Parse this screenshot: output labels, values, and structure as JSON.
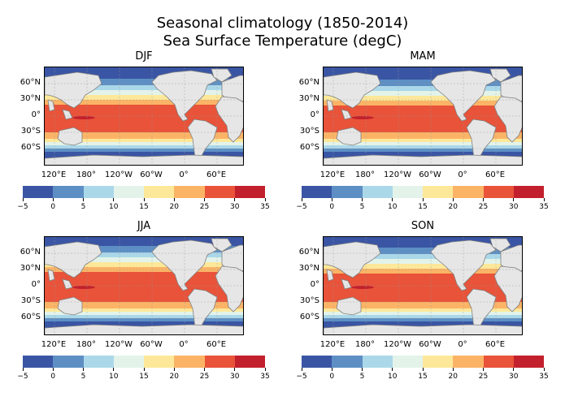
{
  "title_line1": "Seasonal climatology  (1850-2014)",
  "title_line2": "Sea Surface Temperature (degC)",
  "panels": [
    {
      "title": "DJF",
      "season": "DJF"
    },
    {
      "title": "MAM",
      "season": "MAM"
    },
    {
      "title": "JJA",
      "season": "JJA"
    },
    {
      "title": "SON",
      "season": "SON"
    }
  ],
  "lat_labels": [
    "60°N",
    "30°N",
    "0°",
    "30°S",
    "60°S"
  ],
  "lon_labels": [
    "120°E",
    "180°",
    "120°W",
    "60°W",
    "0°",
    "60°E"
  ],
  "colorbar": {
    "ticks": [
      "−5",
      "0",
      "5",
      "10",
      "15",
      "20",
      "25",
      "30",
      "35"
    ],
    "colors": [
      "#3a55a4",
      "#5d8fc4",
      "#abd8e9",
      "#e3f3ea",
      "#fde89a",
      "#fbb466",
      "#e85339",
      "#c3202d"
    ]
  },
  "colors": {
    "land": "#e6e6e6",
    "coast": "#808080",
    "frame": "#000000"
  }
}
